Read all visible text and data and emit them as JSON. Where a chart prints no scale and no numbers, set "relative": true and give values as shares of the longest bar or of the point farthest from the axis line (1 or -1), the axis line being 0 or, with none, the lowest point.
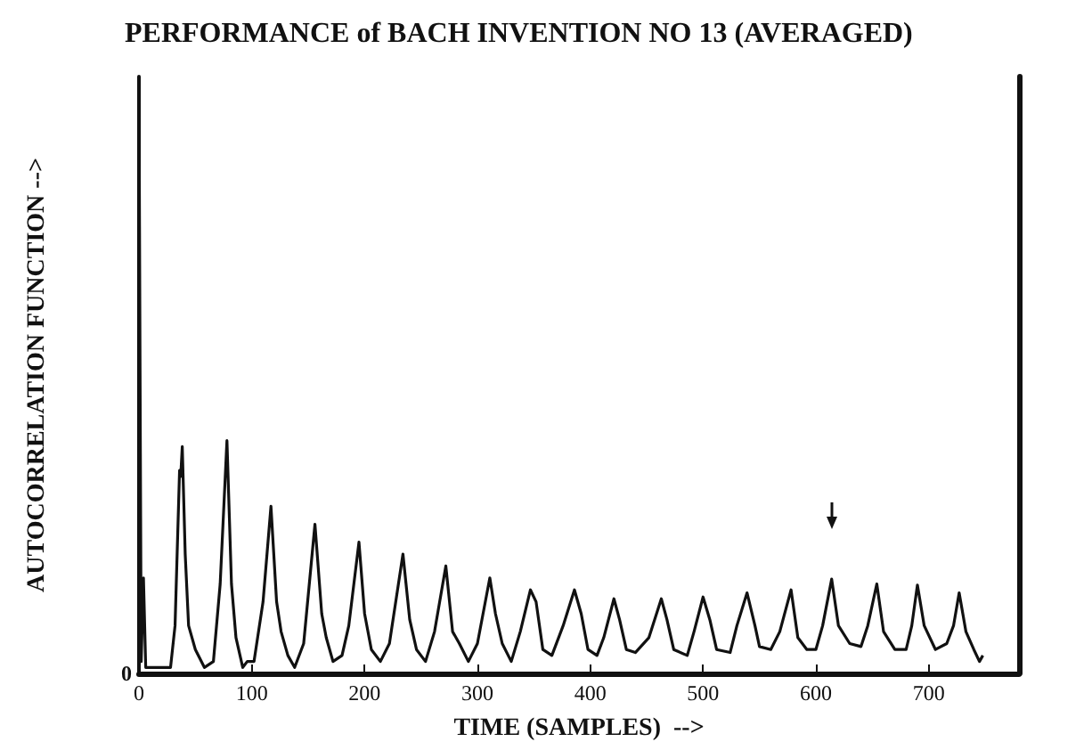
{
  "chart_data": {
    "type": "line",
    "title": "PERFORMANCE of BACH INVENTION NO 13 (AVERAGED)",
    "xlabel": "TIME (SAMPLES)  -->",
    "ylabel": "AUTOCORRELATION FUNCTION -->",
    "relative": true,
    "xlim": [
      0,
      780
    ],
    "xticks": [
      0,
      100,
      200,
      300,
      400,
      500,
      600,
      700
    ],
    "grid": false,
    "marker": "none",
    "line_style": "solid",
    "annotations": [
      "0"
    ],
    "series": [
      {
        "color": "#111111",
        "x": [
          0,
          1,
          2,
          4,
          6,
          15,
          28,
          32,
          36,
          37,
          38.4,
          41,
          44,
          50,
          58,
          66,
          72,
          78,
          82,
          86,
          92,
          96,
          102,
          110,
          117,
          122,
          126,
          132,
          138,
          146,
          156,
          162,
          166,
          172,
          180,
          186,
          195,
          200,
          206,
          214,
          222,
          234,
          240,
          246,
          254,
          262,
          272,
          278,
          284,
          292,
          300,
          311,
          316,
          322,
          330,
          338,
          347,
          352,
          358,
          366,
          376,
          386,
          392,
          398,
          406,
          412,
          421,
          426,
          432,
          440,
          452,
          463,
          468,
          474,
          486,
          492,
          500,
          506,
          512,
          524,
          530,
          539,
          546,
          550,
          560,
          568,
          578,
          584,
          592,
          600,
          606,
          614,
          620,
          630,
          640,
          646,
          654,
          660,
          670,
          680,
          685,
          690,
          696,
          706,
          716,
          722,
          727,
          733,
          740,
          745,
          748
        ],
        "values": [
          1,
          0.5,
          0.02,
          0.16,
          0.01,
          0.01,
          0.01,
          0.08,
          0.34,
          0.33,
          0.38,
          0.2,
          0.08,
          0.04,
          0.01,
          0.02,
          0.15,
          0.39,
          0.15,
          0.06,
          0.01,
          0.02,
          0.02,
          0.12,
          0.28,
          0.12,
          0.07,
          0.03,
          0.01,
          0.05,
          0.25,
          0.1,
          0.06,
          0.02,
          0.03,
          0.08,
          0.22,
          0.1,
          0.04,
          0.02,
          0.05,
          0.2,
          0.09,
          0.04,
          0.02,
          0.07,
          0.18,
          0.07,
          0.05,
          0.02,
          0.05,
          0.16,
          0.1,
          0.05,
          0.02,
          0.07,
          0.14,
          0.12,
          0.04,
          0.03,
          0.08,
          0.14,
          0.1,
          0.04,
          0.03,
          0.06,
          0.125,
          0.09,
          0.04,
          0.035,
          0.06,
          0.125,
          0.09,
          0.04,
          0.03,
          0.07,
          0.128,
          0.09,
          0.04,
          0.035,
          0.08,
          0.135,
          0.08,
          0.045,
          0.04,
          0.07,
          0.14,
          0.06,
          0.04,
          0.04,
          0.08,
          0.158,
          0.08,
          0.05,
          0.045,
          0.08,
          0.15,
          0.07,
          0.04,
          0.04,
          0.08,
          0.148,
          0.08,
          0.04,
          0.05,
          0.08,
          0.135,
          0.07,
          0.04,
          0.02,
          0.03
        ]
      }
    ]
  }
}
